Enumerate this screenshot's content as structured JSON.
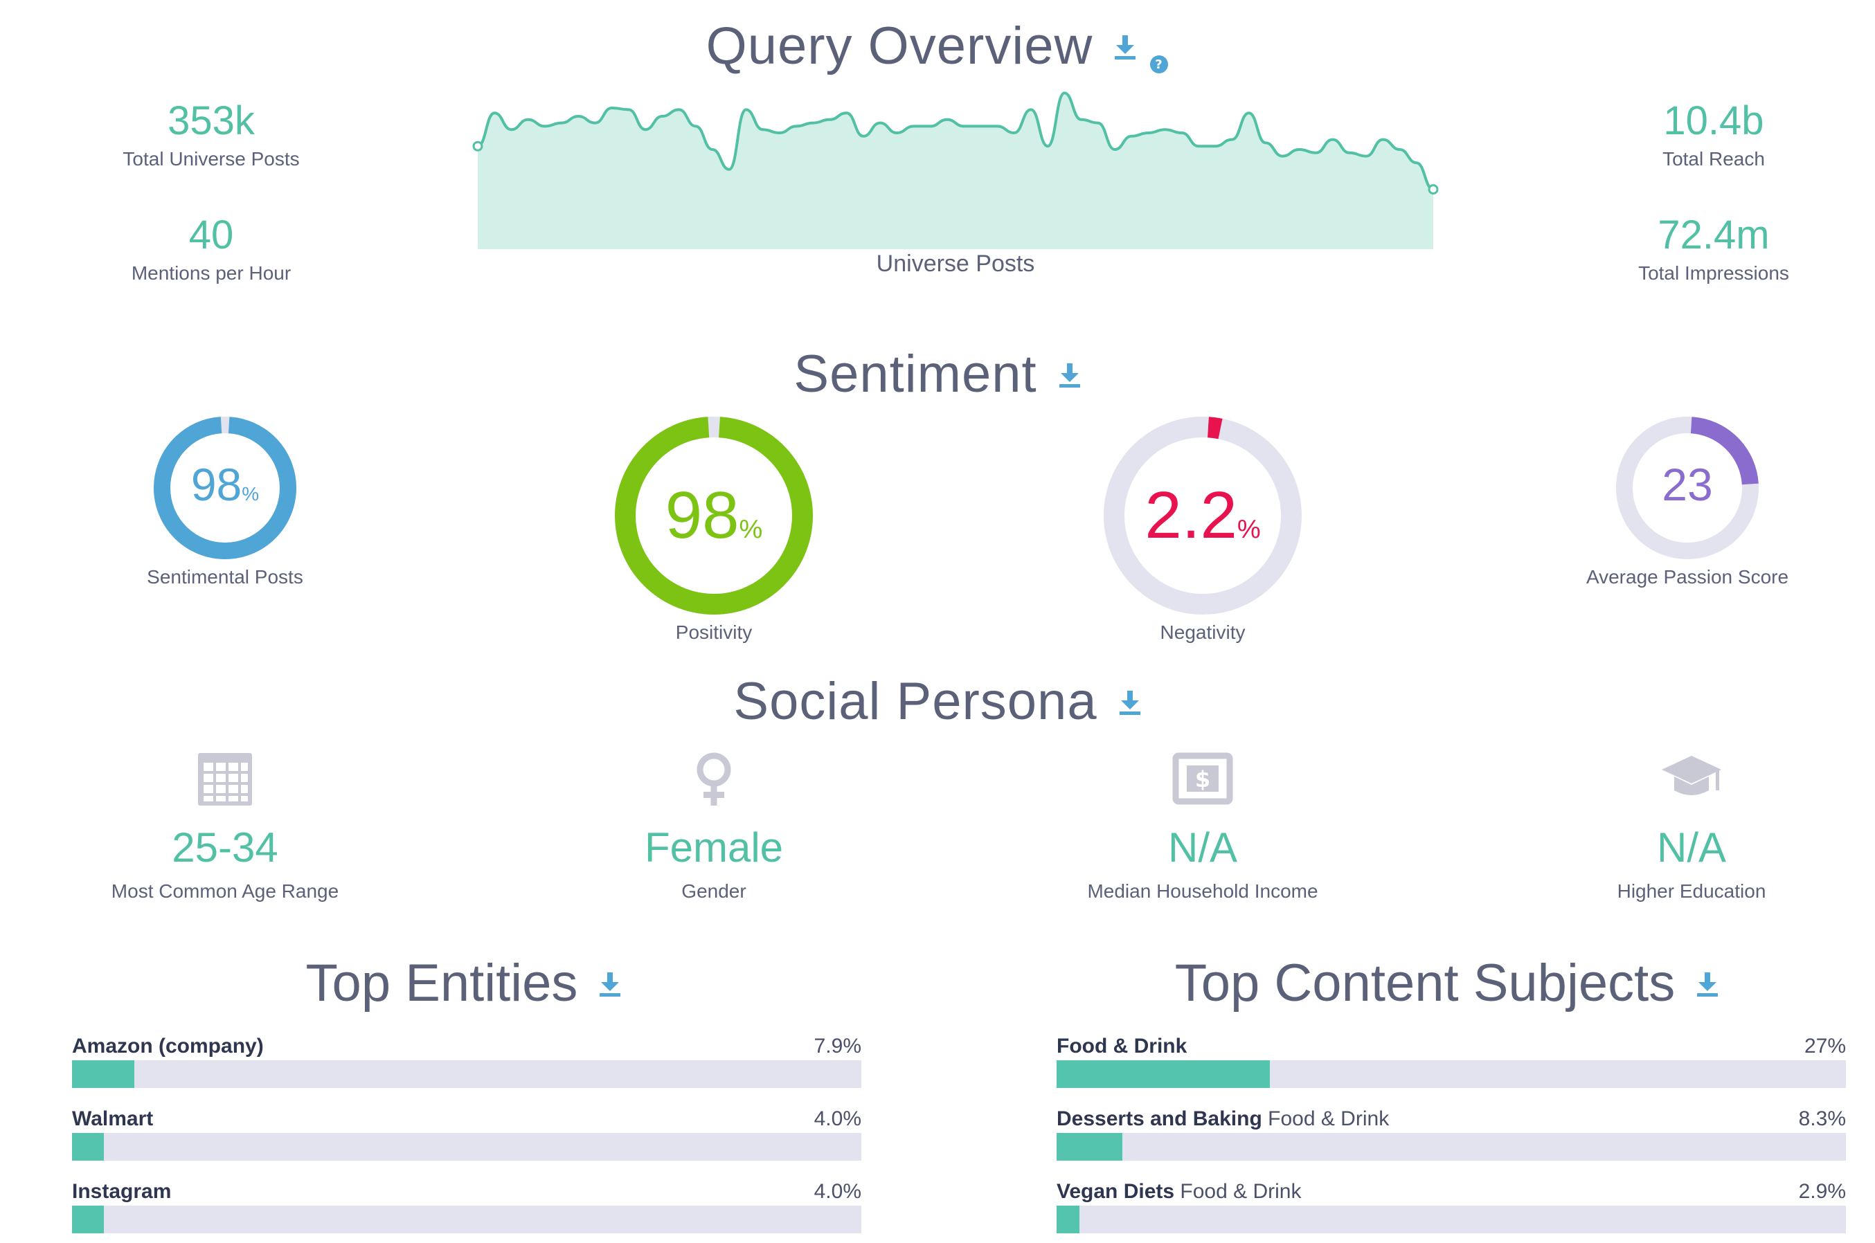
{
  "overview": {
    "title": "Query Overview",
    "stats_left": [
      {
        "value": "353k",
        "label": "Total Universe Posts"
      },
      {
        "value": "40",
        "label": "Mentions per Hour"
      }
    ],
    "stats_right": [
      {
        "value": "10.4b",
        "label": "Total Reach"
      },
      {
        "value": "72.4m",
        "label": "Total Impressions"
      }
    ],
    "chart_label": "Universe Posts",
    "chart_data": {
      "type": "area",
      "title": "Universe Posts",
      "xlabel": "",
      "ylabel": "",
      "ylim": [
        0,
        100
      ],
      "values": [
        62,
        82,
        72,
        78,
        74,
        76,
        80,
        76,
        85,
        84,
        72,
        80,
        84,
        74,
        60,
        48,
        84,
        72,
        70,
        74,
        76,
        78,
        82,
        68,
        76,
        70,
        74,
        74,
        78,
        74,
        74,
        74,
        70,
        84,
        62,
        94,
        78,
        76,
        60,
        68,
        70,
        72,
        70,
        62,
        62,
        66,
        82,
        64,
        56,
        60,
        58,
        66,
        58,
        56,
        66,
        60,
        52,
        36
      ]
    },
    "accent_color": "#52c0a5",
    "area_fill_color": "#d2efe8"
  },
  "sentiment": {
    "title": "Sentiment",
    "donuts": [
      {
        "value": "98",
        "unit": "%",
        "label": "Sentimental Posts",
        "fraction": 0.98,
        "color": "#4fa5d5"
      },
      {
        "value": "98",
        "unit": "%",
        "label": "Positivity",
        "fraction": 0.98,
        "color": "#7dc313"
      },
      {
        "value": "2.2",
        "unit": "%",
        "label": "Negativity",
        "fraction": 0.022,
        "color": "#e8124f"
      },
      {
        "value": "23",
        "unit": "",
        "label": "Average Passion Score",
        "fraction": 0.23,
        "color": "#8a6ccf"
      }
    ],
    "track_color": "#e3e3ef"
  },
  "persona": {
    "title": "Social Persona",
    "items": [
      {
        "icon": "calendar-icon",
        "value": "25-34",
        "label": "Most Common Age Range"
      },
      {
        "icon": "female-icon",
        "value": "Female",
        "label": "Gender"
      },
      {
        "icon": "dollar-icon",
        "value": "N/A",
        "label": "Median Household Income"
      },
      {
        "icon": "graduation-cap-icon",
        "value": "N/A",
        "label": "Higher Education"
      }
    ]
  },
  "entities": {
    "title": "Top Entities",
    "items": [
      {
        "name": "Amazon (company)",
        "sub": "",
        "percent": "7.9%",
        "fraction": 0.079
      },
      {
        "name": "Walmart",
        "sub": "",
        "percent": "4.0%",
        "fraction": 0.04
      },
      {
        "name": "Instagram",
        "sub": "",
        "percent": "4.0%",
        "fraction": 0.04
      }
    ]
  },
  "subjects": {
    "title": "Top Content Subjects",
    "items": [
      {
        "name": "Food & Drink",
        "sub": "",
        "percent": "27%",
        "fraction": 0.27
      },
      {
        "name": "Desserts and Baking",
        "sub": "Food & Drink",
        "percent": "8.3%",
        "fraction": 0.083
      },
      {
        "name": "Vegan Diets",
        "sub": "Food & Drink",
        "percent": "2.9%",
        "fraction": 0.029
      }
    ]
  }
}
